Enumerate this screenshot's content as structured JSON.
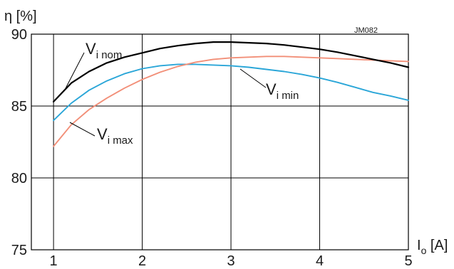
{
  "chart_data": {
    "type": "line",
    "ylabel": "η [%]",
    "xlabel_main": "I",
    "xlabel_sub": "o",
    "xlabel_unit": " [A]",
    "code": "JM082",
    "xlim": [
      0.75,
      5
    ],
    "ylim": [
      75,
      90
    ],
    "grid": true,
    "x_ticks": [
      1,
      2,
      3,
      4,
      5
    ],
    "y_ticks": [
      75,
      80,
      85,
      90
    ],
    "series": [
      {
        "name_main": "V",
        "name_sub": "i nom",
        "color": "#000000",
        "x": [
          1.0,
          1.2,
          1.4,
          1.6,
          1.8,
          2.0,
          2.2,
          2.4,
          2.6,
          2.8,
          3.0,
          3.2,
          3.4,
          3.6,
          3.8,
          4.0,
          4.2,
          4.4,
          4.6,
          4.8,
          5.0
        ],
        "y": [
          85.3,
          86.6,
          87.4,
          88.0,
          88.4,
          88.7,
          89.0,
          89.2,
          89.35,
          89.45,
          89.45,
          89.4,
          89.35,
          89.25,
          89.1,
          88.95,
          88.75,
          88.5,
          88.25,
          88.0,
          87.7
        ]
      },
      {
        "name_main": "V",
        "name_sub": "i min",
        "color": "#2aa6d8",
        "x": [
          1.0,
          1.2,
          1.4,
          1.6,
          1.8,
          2.0,
          2.2,
          2.4,
          2.6,
          2.8,
          3.0,
          3.2,
          3.4,
          3.6,
          3.8,
          4.0,
          4.2,
          4.4,
          4.6,
          4.8,
          5.0
        ],
        "y": [
          84.0,
          85.2,
          86.1,
          86.75,
          87.25,
          87.6,
          87.8,
          87.9,
          87.9,
          87.85,
          87.8,
          87.7,
          87.55,
          87.4,
          87.2,
          86.95,
          86.65,
          86.3,
          85.95,
          85.7,
          85.4
        ]
      },
      {
        "name_main": "V",
        "name_sub": "i max",
        "color": "#f28f78",
        "x": [
          1.0,
          1.2,
          1.4,
          1.6,
          1.8,
          2.0,
          2.2,
          2.4,
          2.6,
          2.8,
          3.0,
          3.2,
          3.4,
          3.6,
          3.8,
          4.0,
          4.2,
          4.4,
          4.6,
          4.8,
          5.0
        ],
        "y": [
          82.2,
          83.7,
          84.75,
          85.55,
          86.25,
          86.85,
          87.35,
          87.75,
          88.05,
          88.25,
          88.35,
          88.4,
          88.45,
          88.45,
          88.4,
          88.35,
          88.3,
          88.25,
          88.2,
          88.15,
          88.1
        ]
      }
    ]
  }
}
